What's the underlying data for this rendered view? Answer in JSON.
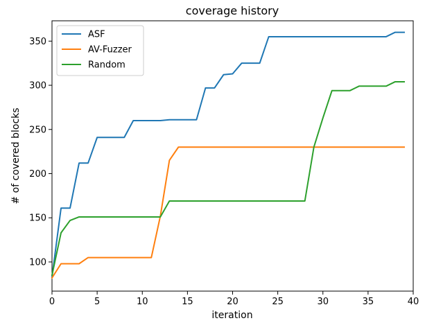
{
  "chart_data": {
    "type": "line",
    "title": "coverage history",
    "xlabel": "iteration",
    "ylabel": "# of covered blocks",
    "xlim": [
      0,
      40
    ],
    "ylim": [
      67,
      373
    ],
    "xticks": [
      0,
      5,
      10,
      15,
      20,
      25,
      30,
      35,
      40
    ],
    "yticks": [
      100,
      150,
      200,
      250,
      300,
      350
    ],
    "grid": false,
    "legend_position": "top-left",
    "series": [
      {
        "name": "ASF",
        "color": "#1f77b4",
        "x": [
          0,
          1,
          2,
          3,
          4,
          5,
          6,
          7,
          8,
          9,
          10,
          11,
          12,
          13,
          14,
          15,
          16,
          17,
          18,
          19,
          20,
          21,
          22,
          23,
          24,
          25,
          26,
          27,
          28,
          29,
          30,
          31,
          32,
          33,
          34,
          35,
          36,
          37,
          38,
          39
        ],
        "y": [
          83,
          161,
          161,
          212,
          212,
          241,
          241,
          241,
          241,
          260,
          260,
          260,
          260,
          261,
          261,
          261,
          261,
          297,
          297,
          312,
          313,
          325,
          325,
          325,
          355,
          355,
          355,
          355,
          355,
          355,
          355,
          355,
          355,
          355,
          355,
          355,
          355,
          355,
          360,
          360
        ]
      },
      {
        "name": "AV-Fuzzer",
        "color": "#ff7f0e",
        "x": [
          0,
          1,
          2,
          3,
          4,
          5,
          6,
          7,
          8,
          9,
          10,
          11,
          12,
          13,
          14,
          15,
          16,
          17,
          18,
          19,
          20,
          21,
          22,
          23,
          24,
          25,
          26,
          27,
          28,
          29,
          30,
          31,
          32,
          33,
          34,
          35,
          36,
          37,
          38,
          39
        ],
        "y": [
          82,
          98,
          98,
          98,
          105,
          105,
          105,
          105,
          105,
          105,
          105,
          105,
          152,
          215,
          230,
          230,
          230,
          230,
          230,
          230,
          230,
          230,
          230,
          230,
          230,
          230,
          230,
          230,
          230,
          230,
          230,
          230,
          230,
          230,
          230,
          230,
          230,
          230,
          230,
          230
        ]
      },
      {
        "name": "Random",
        "color": "#2ca02c",
        "x": [
          0,
          1,
          2,
          3,
          4,
          5,
          6,
          7,
          8,
          9,
          10,
          11,
          12,
          13,
          14,
          15,
          16,
          17,
          18,
          19,
          20,
          21,
          22,
          23,
          24,
          25,
          26,
          27,
          28,
          29,
          30,
          31,
          32,
          33,
          34,
          35,
          36,
          37,
          38,
          39
        ],
        "y": [
          85,
          133,
          147,
          151,
          151,
          151,
          151,
          151,
          151,
          151,
          151,
          151,
          151,
          169,
          169,
          169,
          169,
          169,
          169,
          169,
          169,
          169,
          169,
          169,
          169,
          169,
          169,
          169,
          169,
          230,
          263,
          294,
          294,
          294,
          299,
          299,
          299,
          299,
          304,
          304
        ]
      }
    ]
  }
}
